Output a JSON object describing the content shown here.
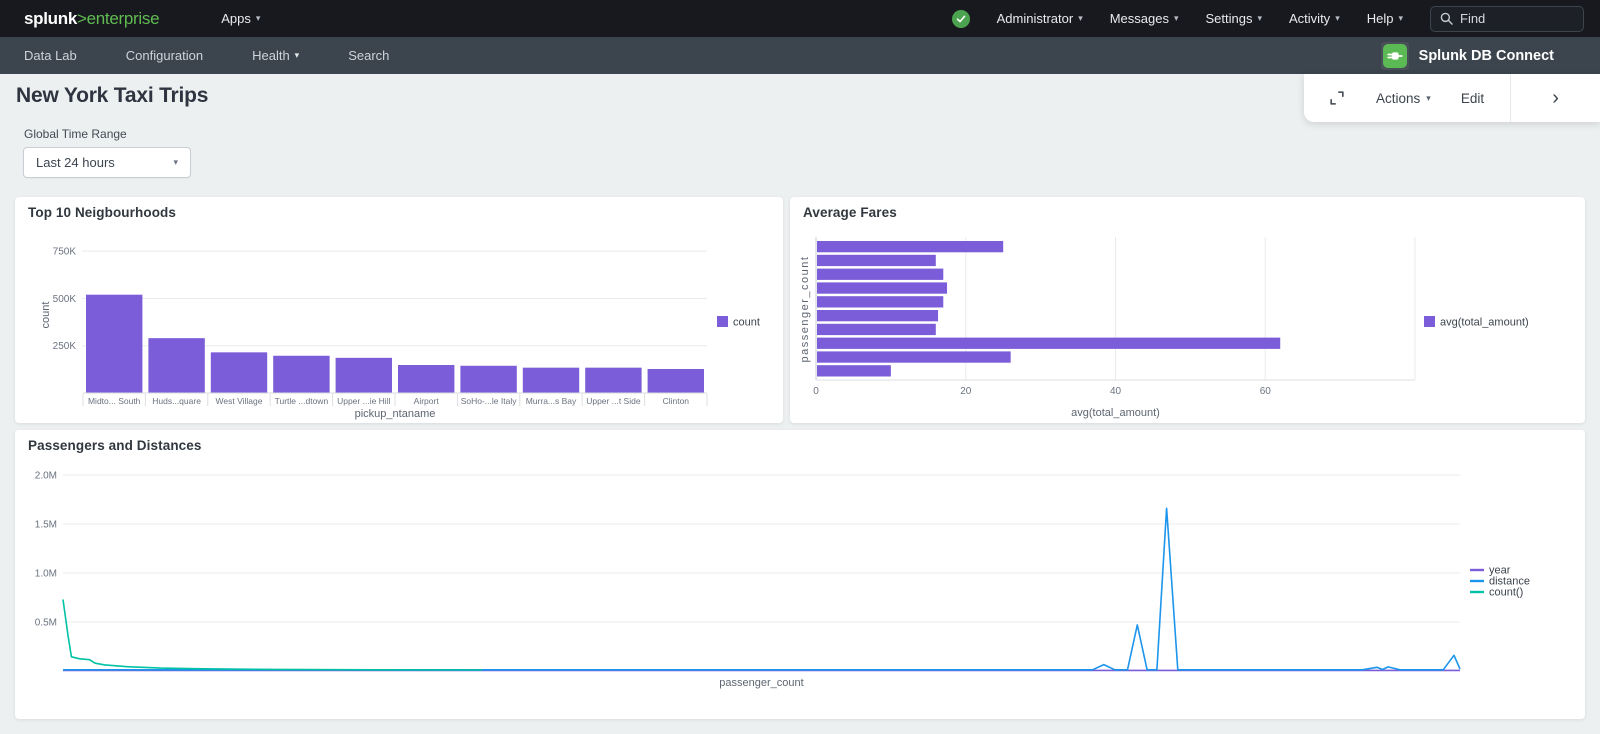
{
  "icons": {
    "caret": "▾",
    "chevron_right": "›"
  },
  "colors": {
    "purple": "#7b5dd9",
    "blue": "#1c95ec",
    "teal": "#00c2a4",
    "brand_green": "#61ba52",
    "status_green": "#4ca34f",
    "app_icon_green": "#5cba54"
  },
  "topnav": {
    "logo": {
      "bold": "splunk",
      "accent": ">enterprise"
    },
    "apps_label": "Apps",
    "right_menus": [
      {
        "label": "Administrator"
      },
      {
        "label": "Messages"
      },
      {
        "label": "Settings"
      },
      {
        "label": "Activity"
      },
      {
        "label": "Help"
      }
    ],
    "find_placeholder": "Find"
  },
  "appnav": {
    "items": [
      {
        "label": "Data Lab"
      },
      {
        "label": "Configuration"
      },
      {
        "label": "Health"
      },
      {
        "label": "Search"
      }
    ],
    "app_title": "Splunk DB Connect"
  },
  "toolbar": {
    "actions_label": "Actions",
    "edit_label": "Edit"
  },
  "page": {
    "title": "New York Taxi Trips",
    "time_range_label": "Global Time Range",
    "time_range_value": "Last 24 hours"
  },
  "chart_data": [
    {
      "type": "bar",
      "title": "Top 10 Neigbourhoods",
      "xlabel": "pickup_ntaname",
      "ylabel": "count",
      "categories": [
        "Midto... South",
        "Huds...quare",
        "West Village",
        "Turtle ...dtown",
        "Upper ...ie Hill",
        "Airport",
        "SoHo-...le Italy",
        "Murra...s Bay",
        "Upper ...t Side",
        "Clinton"
      ],
      "values": [
        520000,
        290000,
        215000,
        197000,
        186000,
        148000,
        144000,
        134000,
        134000,
        127000
      ],
      "yticks": [
        250000,
        500000,
        750000
      ],
      "ytick_labels": [
        "250K",
        "500K",
        "750K"
      ],
      "ylim": [
        0,
        825000
      ],
      "legend": [
        "count"
      ],
      "legend_position": "right",
      "grid": "horizontal"
    },
    {
      "type": "bar_h",
      "title": "Average Fares",
      "xlabel": "avg(total_amount)",
      "ylabel": "passenger_count",
      "values": [
        25,
        16,
        17,
        17.5,
        17,
        16.3,
        16,
        62,
        26,
        10
      ],
      "xticks": [
        0,
        20,
        40,
        60
      ],
      "xlim": [
        0,
        80
      ],
      "legend": [
        "avg(total_amount)"
      ],
      "legend_position": "right",
      "grid": "vertical"
    },
    {
      "type": "line",
      "title": "Passengers and Distances",
      "xlabel": "passenger_count",
      "yticks": [
        0.5,
        1,
        1.5,
        2
      ],
      "ytick_labels": [
        "0.5M",
        "1.0M",
        "1.5M",
        "2.0M"
      ],
      "ylim": [
        0,
        2.2
      ],
      "series": [
        {
          "name": "year",
          "color": "#7b5dd9",
          "points": [
            [
              0,
              0.006
            ],
            [
              1,
              0.006
            ]
          ]
        },
        {
          "name": "distance",
          "color": "#1c95ec",
          "points": [
            [
              0,
              0.012
            ],
            [
              0.5,
              0.012
            ],
            [
              0.737,
              0.012
            ],
            [
              0.745,
              0.065
            ],
            [
              0.753,
              0.012
            ],
            [
              0.762,
              0.012
            ],
            [
              0.769,
              0.47
            ],
            [
              0.776,
              0.012
            ],
            [
              0.783,
              0.012
            ],
            [
              0.79,
              1.66
            ],
            [
              0.798,
              0.012
            ],
            [
              0.93,
              0.012
            ],
            [
              0.9406,
              0.038
            ],
            [
              0.9445,
              0.015
            ],
            [
              0.9485,
              0.042
            ],
            [
              0.957,
              0.012
            ],
            [
              0.988,
              0.012
            ],
            [
              0.9957,
              0.16
            ],
            [
              1,
              0.02
            ]
          ]
        },
        {
          "name": "count()",
          "color": "#00c2a4",
          "points": [
            [
              0,
              0.73
            ],
            [
              0.0035,
              0.37
            ],
            [
              0.006,
              0.145
            ],
            [
              0.012,
              0.125
            ],
            [
              0.019,
              0.115
            ],
            [
              0.023,
              0.08
            ],
            [
              0.03,
              0.062
            ],
            [
              0.045,
              0.045
            ],
            [
              0.07,
              0.03
            ],
            [
              0.1,
              0.022
            ],
            [
              0.15,
              0.016
            ],
            [
              0.22,
              0.012
            ],
            [
              0.3,
              0.01
            ]
          ]
        }
      ],
      "legend": [
        "year",
        "distance",
        "count()"
      ],
      "legend_position": "right"
    }
  ]
}
